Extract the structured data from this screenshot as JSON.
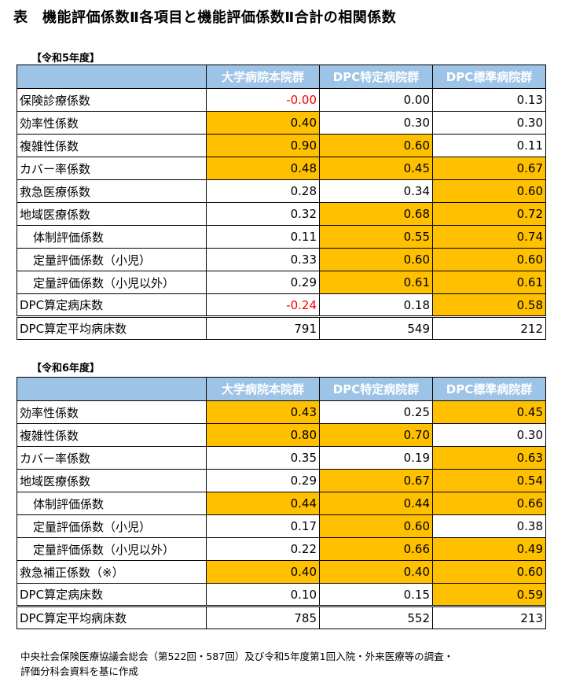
{
  "title": "表　機能評価係数Ⅱ各項目と機能評価係数Ⅱ合計の相関係数",
  "tables": [
    {
      "label": "【令和5年度】",
      "columns": [
        "大学病院本院群",
        "DPC特定病院群",
        "DPC標準病院群"
      ],
      "rows": [
        {
          "label": "保険診療係数",
          "indent": false,
          "values": [
            "-0.00",
            "0.00",
            "0.13"
          ],
          "highlight": [
            false,
            false,
            false
          ],
          "negative": [
            true,
            false,
            false
          ]
        },
        {
          "label": "効率性係数",
          "indent": false,
          "values": [
            "0.40",
            "0.30",
            "0.30"
          ],
          "highlight": [
            true,
            false,
            false
          ],
          "negative": [
            false,
            false,
            false
          ]
        },
        {
          "label": "複雑性係数",
          "indent": false,
          "values": [
            "0.90",
            "0.60",
            "0.11"
          ],
          "highlight": [
            true,
            true,
            false
          ],
          "negative": [
            false,
            false,
            false
          ]
        },
        {
          "label": "カバー率係数",
          "indent": false,
          "values": [
            "0.48",
            "0.45",
            "0.67"
          ],
          "highlight": [
            true,
            true,
            true
          ],
          "negative": [
            false,
            false,
            false
          ]
        },
        {
          "label": "救急医療係数",
          "indent": false,
          "values": [
            "0.28",
            "0.34",
            "0.60"
          ],
          "highlight": [
            false,
            false,
            true
          ],
          "negative": [
            false,
            false,
            false
          ]
        },
        {
          "label": "地域医療係数",
          "indent": false,
          "values": [
            "0.32",
            "0.68",
            "0.72"
          ],
          "highlight": [
            false,
            true,
            true
          ],
          "negative": [
            false,
            false,
            false
          ]
        },
        {
          "label": "体制評価係数",
          "indent": true,
          "values": [
            "0.11",
            "0.55",
            "0.74"
          ],
          "highlight": [
            false,
            true,
            true
          ],
          "negative": [
            false,
            false,
            false
          ]
        },
        {
          "label": "定量評価係数（小児）",
          "indent": true,
          "values": [
            "0.33",
            "0.60",
            "0.60"
          ],
          "highlight": [
            false,
            true,
            true
          ],
          "negative": [
            false,
            false,
            false
          ]
        },
        {
          "label": "定量評価係数（小児以外）",
          "indent": true,
          "values": [
            "0.29",
            "0.61",
            "0.61"
          ],
          "highlight": [
            false,
            true,
            true
          ],
          "negative": [
            false,
            false,
            false
          ]
        },
        {
          "label": "DPC算定病床数",
          "indent": false,
          "values": [
            "-0.24",
            "0.18",
            "0.58"
          ],
          "highlight": [
            false,
            false,
            true
          ],
          "negative": [
            true,
            false,
            false
          ]
        }
      ],
      "total_row": {
        "label": "DPC算定平均病床数",
        "values": [
          "791",
          "549",
          "212"
        ]
      }
    },
    {
      "label": "【令和6年度】",
      "columns": [
        "大学病院本院群",
        "DPC特定病院群",
        "DPC標準病院群"
      ],
      "rows": [
        {
          "label": "効率性係数",
          "indent": false,
          "values": [
            "0.43",
            "0.25",
            "0.45"
          ],
          "highlight": [
            true,
            false,
            true
          ],
          "negative": [
            false,
            false,
            false
          ]
        },
        {
          "label": "複雑性係数",
          "indent": false,
          "values": [
            "0.80",
            "0.70",
            "0.30"
          ],
          "highlight": [
            true,
            true,
            false
          ],
          "negative": [
            false,
            false,
            false
          ]
        },
        {
          "label": "カバー率係数",
          "indent": false,
          "values": [
            "0.35",
            "0.19",
            "0.63"
          ],
          "highlight": [
            false,
            false,
            true
          ],
          "negative": [
            false,
            false,
            false
          ]
        },
        {
          "label": "地域医療係数",
          "indent": false,
          "values": [
            "0.29",
            "0.67",
            "0.54"
          ],
          "highlight": [
            false,
            true,
            true
          ],
          "negative": [
            false,
            false,
            false
          ]
        },
        {
          "label": "体制評価係数",
          "indent": true,
          "values": [
            "0.44",
            "0.44",
            "0.66"
          ],
          "highlight": [
            true,
            true,
            true
          ],
          "negative": [
            false,
            false,
            false
          ]
        },
        {
          "label": "定量評価係数（小児）",
          "indent": true,
          "values": [
            "0.17",
            "0.60",
            "0.38"
          ],
          "highlight": [
            false,
            true,
            false
          ],
          "negative": [
            false,
            false,
            false
          ]
        },
        {
          "label": "定量評価係数（小児以外）",
          "indent": true,
          "values": [
            "0.22",
            "0.66",
            "0.49"
          ],
          "highlight": [
            false,
            true,
            true
          ],
          "negative": [
            false,
            false,
            false
          ]
        },
        {
          "label": "救急補正係数（※）",
          "indent": false,
          "values": [
            "0.40",
            "0.40",
            "0.60"
          ],
          "highlight": [
            true,
            true,
            true
          ],
          "negative": [
            false,
            false,
            false
          ]
        },
        {
          "label": "DPC算定病床数",
          "indent": false,
          "values": [
            "0.10",
            "0.15",
            "0.59"
          ],
          "highlight": [
            false,
            false,
            true
          ],
          "negative": [
            false,
            false,
            false
          ]
        }
      ],
      "total_row": {
        "label": "DPC算定平均病床数",
        "values": [
          "785",
          "552",
          "213"
        ]
      }
    }
  ],
  "footer": [
    "中央社会保険医療協議会総会（第522回・587回）及び令和5年度第1回入院・外来医療等の調査・",
    "評価分科会資料を基に作成"
  ],
  "colors": {
    "header_bg": "#9dc3e6",
    "highlight": "#ffc000",
    "negative": "#ff0000"
  }
}
